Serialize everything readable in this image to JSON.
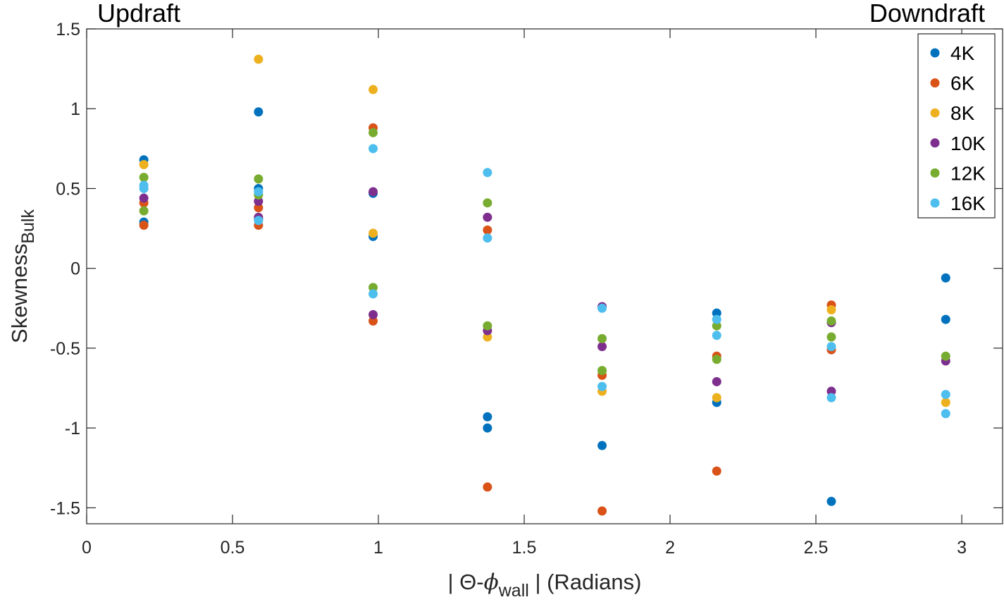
{
  "chart_data": {
    "type": "scatter",
    "annotations": {
      "left": "Updraft",
      "right": "Downdraft"
    },
    "xlabel": {
      "prefix": "| Θ-",
      "symbol": "ϕ",
      "subscript": "wall",
      "suffix": " | (Radians)"
    },
    "ylabel": {
      "main": "Skewness",
      "subscript": "Bulk"
    },
    "xlim": [
      0,
      3.14
    ],
    "ylim": [
      -1.6,
      1.5
    ],
    "xticks": [
      0,
      0.5,
      1,
      1.5,
      2,
      2.5,
      3
    ],
    "xtick_labels": [
      "0",
      "0.5",
      "1",
      "1.5",
      "2",
      "2.5",
      "3"
    ],
    "yticks": [
      -1.5,
      -1,
      -0.5,
      0,
      0.5,
      1,
      1.5
    ],
    "ytick_labels": [
      "-1.5",
      "-1",
      "-0.5",
      "0",
      "0.5",
      "1",
      "1.5"
    ],
    "legend_position": "top-right",
    "series": [
      {
        "name": "4K",
        "color": "#0072BD",
        "points": [
          [
            0.196,
            0.68
          ],
          [
            0.196,
            0.29
          ],
          [
            0.589,
            0.98
          ],
          [
            0.589,
            0.5
          ],
          [
            0.589,
            0.31
          ],
          [
            0.982,
            0.47
          ],
          [
            0.982,
            0.2
          ],
          [
            1.374,
            -0.93
          ],
          [
            1.374,
            -1.0
          ],
          [
            1.767,
            -1.11
          ],
          [
            2.16,
            -0.28
          ],
          [
            2.16,
            -0.84
          ],
          [
            2.553,
            -1.46
          ],
          [
            2.945,
            -0.06
          ],
          [
            2.945,
            -0.32
          ]
        ]
      },
      {
        "name": "6K",
        "color": "#D95319",
        "points": [
          [
            0.196,
            0.41
          ],
          [
            0.196,
            0.27
          ],
          [
            0.589,
            0.38
          ],
          [
            0.589,
            0.27
          ],
          [
            0.982,
            0.88
          ],
          [
            0.982,
            -0.33
          ],
          [
            1.374,
            0.24
          ],
          [
            1.374,
            -1.37
          ],
          [
            1.767,
            -0.67
          ],
          [
            1.767,
            -1.52
          ],
          [
            2.16,
            -0.55
          ],
          [
            2.16,
            -1.27
          ],
          [
            2.553,
            -0.23
          ],
          [
            2.553,
            -0.51
          ]
        ]
      },
      {
        "name": "8K",
        "color": "#EDB120",
        "points": [
          [
            0.196,
            0.65
          ],
          [
            0.589,
            1.31
          ],
          [
            0.982,
            1.12
          ],
          [
            0.982,
            0.22
          ],
          [
            1.374,
            -0.43
          ],
          [
            1.767,
            -0.77
          ],
          [
            2.16,
            -0.81
          ],
          [
            2.553,
            -0.26
          ],
          [
            2.945,
            -0.84
          ]
        ]
      },
      {
        "name": "10K",
        "color": "#7E2F8E",
        "points": [
          [
            0.196,
            0.44
          ],
          [
            0.589,
            0.42
          ],
          [
            0.589,
            0.32
          ],
          [
            0.982,
            0.48
          ],
          [
            0.982,
            -0.29
          ],
          [
            1.374,
            0.32
          ],
          [
            1.374,
            -0.39
          ],
          [
            1.767,
            -0.24
          ],
          [
            1.767,
            -0.49
          ],
          [
            2.16,
            -0.71
          ],
          [
            2.553,
            -0.34
          ],
          [
            2.553,
            -0.77
          ],
          [
            2.945,
            -0.58
          ]
        ]
      },
      {
        "name": "12K",
        "color": "#77AC30",
        "points": [
          [
            0.196,
            0.57
          ],
          [
            0.196,
            0.36
          ],
          [
            0.589,
            0.56
          ],
          [
            0.589,
            0.46
          ],
          [
            0.982,
            0.85
          ],
          [
            0.982,
            -0.12
          ],
          [
            1.374,
            0.41
          ],
          [
            1.374,
            -0.36
          ],
          [
            1.767,
            -0.44
          ],
          [
            1.767,
            -0.64
          ],
          [
            2.16,
            -0.36
          ],
          [
            2.16,
            -0.57
          ],
          [
            2.553,
            -0.33
          ],
          [
            2.553,
            -0.43
          ],
          [
            2.945,
            -0.55
          ]
        ]
      },
      {
        "name": "16K",
        "color": "#4DBEEE",
        "points": [
          [
            0.196,
            0.52
          ],
          [
            0.196,
            0.5
          ],
          [
            0.589,
            0.48
          ],
          [
            0.589,
            0.3
          ],
          [
            0.982,
            0.75
          ],
          [
            0.982,
            -0.16
          ],
          [
            1.374,
            0.6
          ],
          [
            1.374,
            0.19
          ],
          [
            1.767,
            -0.25
          ],
          [
            1.767,
            -0.74
          ],
          [
            2.16,
            -0.32
          ],
          [
            2.16,
            -0.42
          ],
          [
            2.553,
            -0.49
          ],
          [
            2.553,
            -0.81
          ],
          [
            2.945,
            -0.79
          ],
          [
            2.945,
            -0.91
          ]
        ]
      }
    ]
  }
}
